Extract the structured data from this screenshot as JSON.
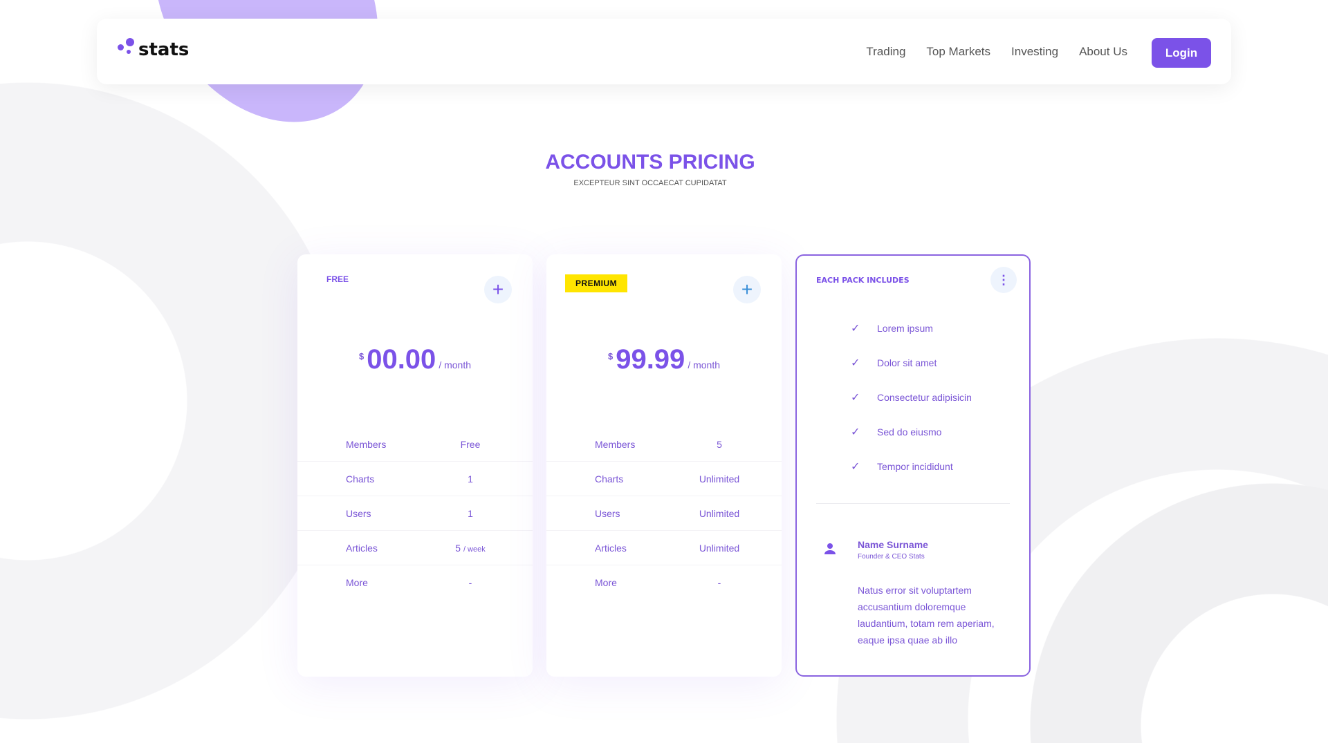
{
  "header": {
    "brand": "stats",
    "nav": [
      "Trading",
      "Top Markets",
      "Investing",
      "About Us"
    ],
    "login": "Login"
  },
  "hero": {
    "title": "ACCOUNTS PRICING",
    "subtitle": "EXCEPTEUR SINT OCCAECAT CUPIDATAT"
  },
  "plans": [
    {
      "name": "FREE",
      "currency": "$",
      "amount": "00.00",
      "period": "/ month",
      "rows": [
        [
          "Members",
          "Free"
        ],
        [
          "Charts",
          "1"
        ],
        [
          "Users",
          "1"
        ],
        [
          "Articles",
          "5",
          "/ week"
        ],
        [
          "More",
          "-"
        ]
      ]
    },
    {
      "name": "PREMIUM",
      "currency": "$",
      "amount": "99.99",
      "period": "/ month",
      "rows": [
        [
          "Members",
          "5"
        ],
        [
          "Charts",
          "Unlimited"
        ],
        [
          "Users",
          "Unlimited"
        ],
        [
          "Articles",
          "Unlimited"
        ],
        [
          "More",
          "-"
        ]
      ]
    }
  ],
  "includes": {
    "title": "EACH PACK INCLUDES",
    "features": [
      "Lorem ipsum",
      "Dolor sit amet",
      "Consectetur adipisicin",
      "Sed do eiusmo",
      "Tempor incididunt"
    ],
    "person": {
      "name": "Name Surname",
      "role": "Founder & CEO Stats",
      "quote": "Natus error sit voluptartem accusantium doloremque laudantium, totam rem aperiam, eaque ipsa quae ab illo"
    }
  },
  "colors": {
    "accent": "#7b52e8",
    "badge": "#ffe500",
    "plus_premium": "#3a8fd8"
  }
}
